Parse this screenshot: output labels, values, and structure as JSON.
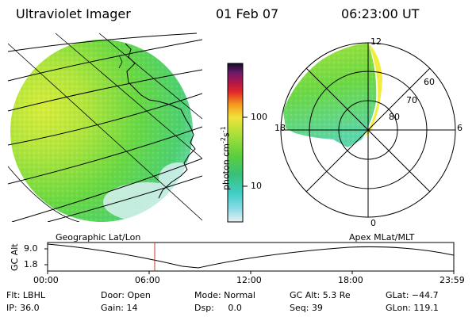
{
  "header": {
    "instrument": "Ultraviolet Imager",
    "date": "01 Feb 07",
    "time": "06:23:00 UT"
  },
  "colorbar": {
    "unit_label": "photon cm",
    "unit_exp": "-2",
    "unit_s": "s",
    "unit_s_exp": "-1",
    "ticks": [
      "100",
      "10"
    ]
  },
  "polar_plot": {
    "mlt_labels": [
      "12",
      "18",
      "6",
      "0"
    ],
    "lat_labels": [
      "60",
      "70",
      "80"
    ]
  },
  "timeline": {
    "left_title": "Geographic Lat/Lon",
    "right_title": "Apex MLat/MLT",
    "y_axis_label": "GC Alt",
    "y_ticks": [
      "9.0",
      "1.8"
    ],
    "x_ticks": [
      "00:00",
      "06:00",
      "12:00",
      "18:00",
      "23:59"
    ]
  },
  "footer": {
    "filter": "Flt: LBHL",
    "ip": "IP: 36.0",
    "door": "Door: Open",
    "gain": "Gain: 14",
    "mode": "Mode: Normal",
    "dsp": "Dsp:     0.0",
    "gc_alt": "GC Alt: 5.3 Re",
    "seq": "Seq: 39",
    "glat": "GLat: −44.7",
    "glon": "GLon: 119.1"
  },
  "colors": {
    "image_green": "#5fd640",
    "image_yellow": "#c8e83a",
    "image_cyan": "#59d9d0",
    "marker_red": "#c0392b"
  }
}
